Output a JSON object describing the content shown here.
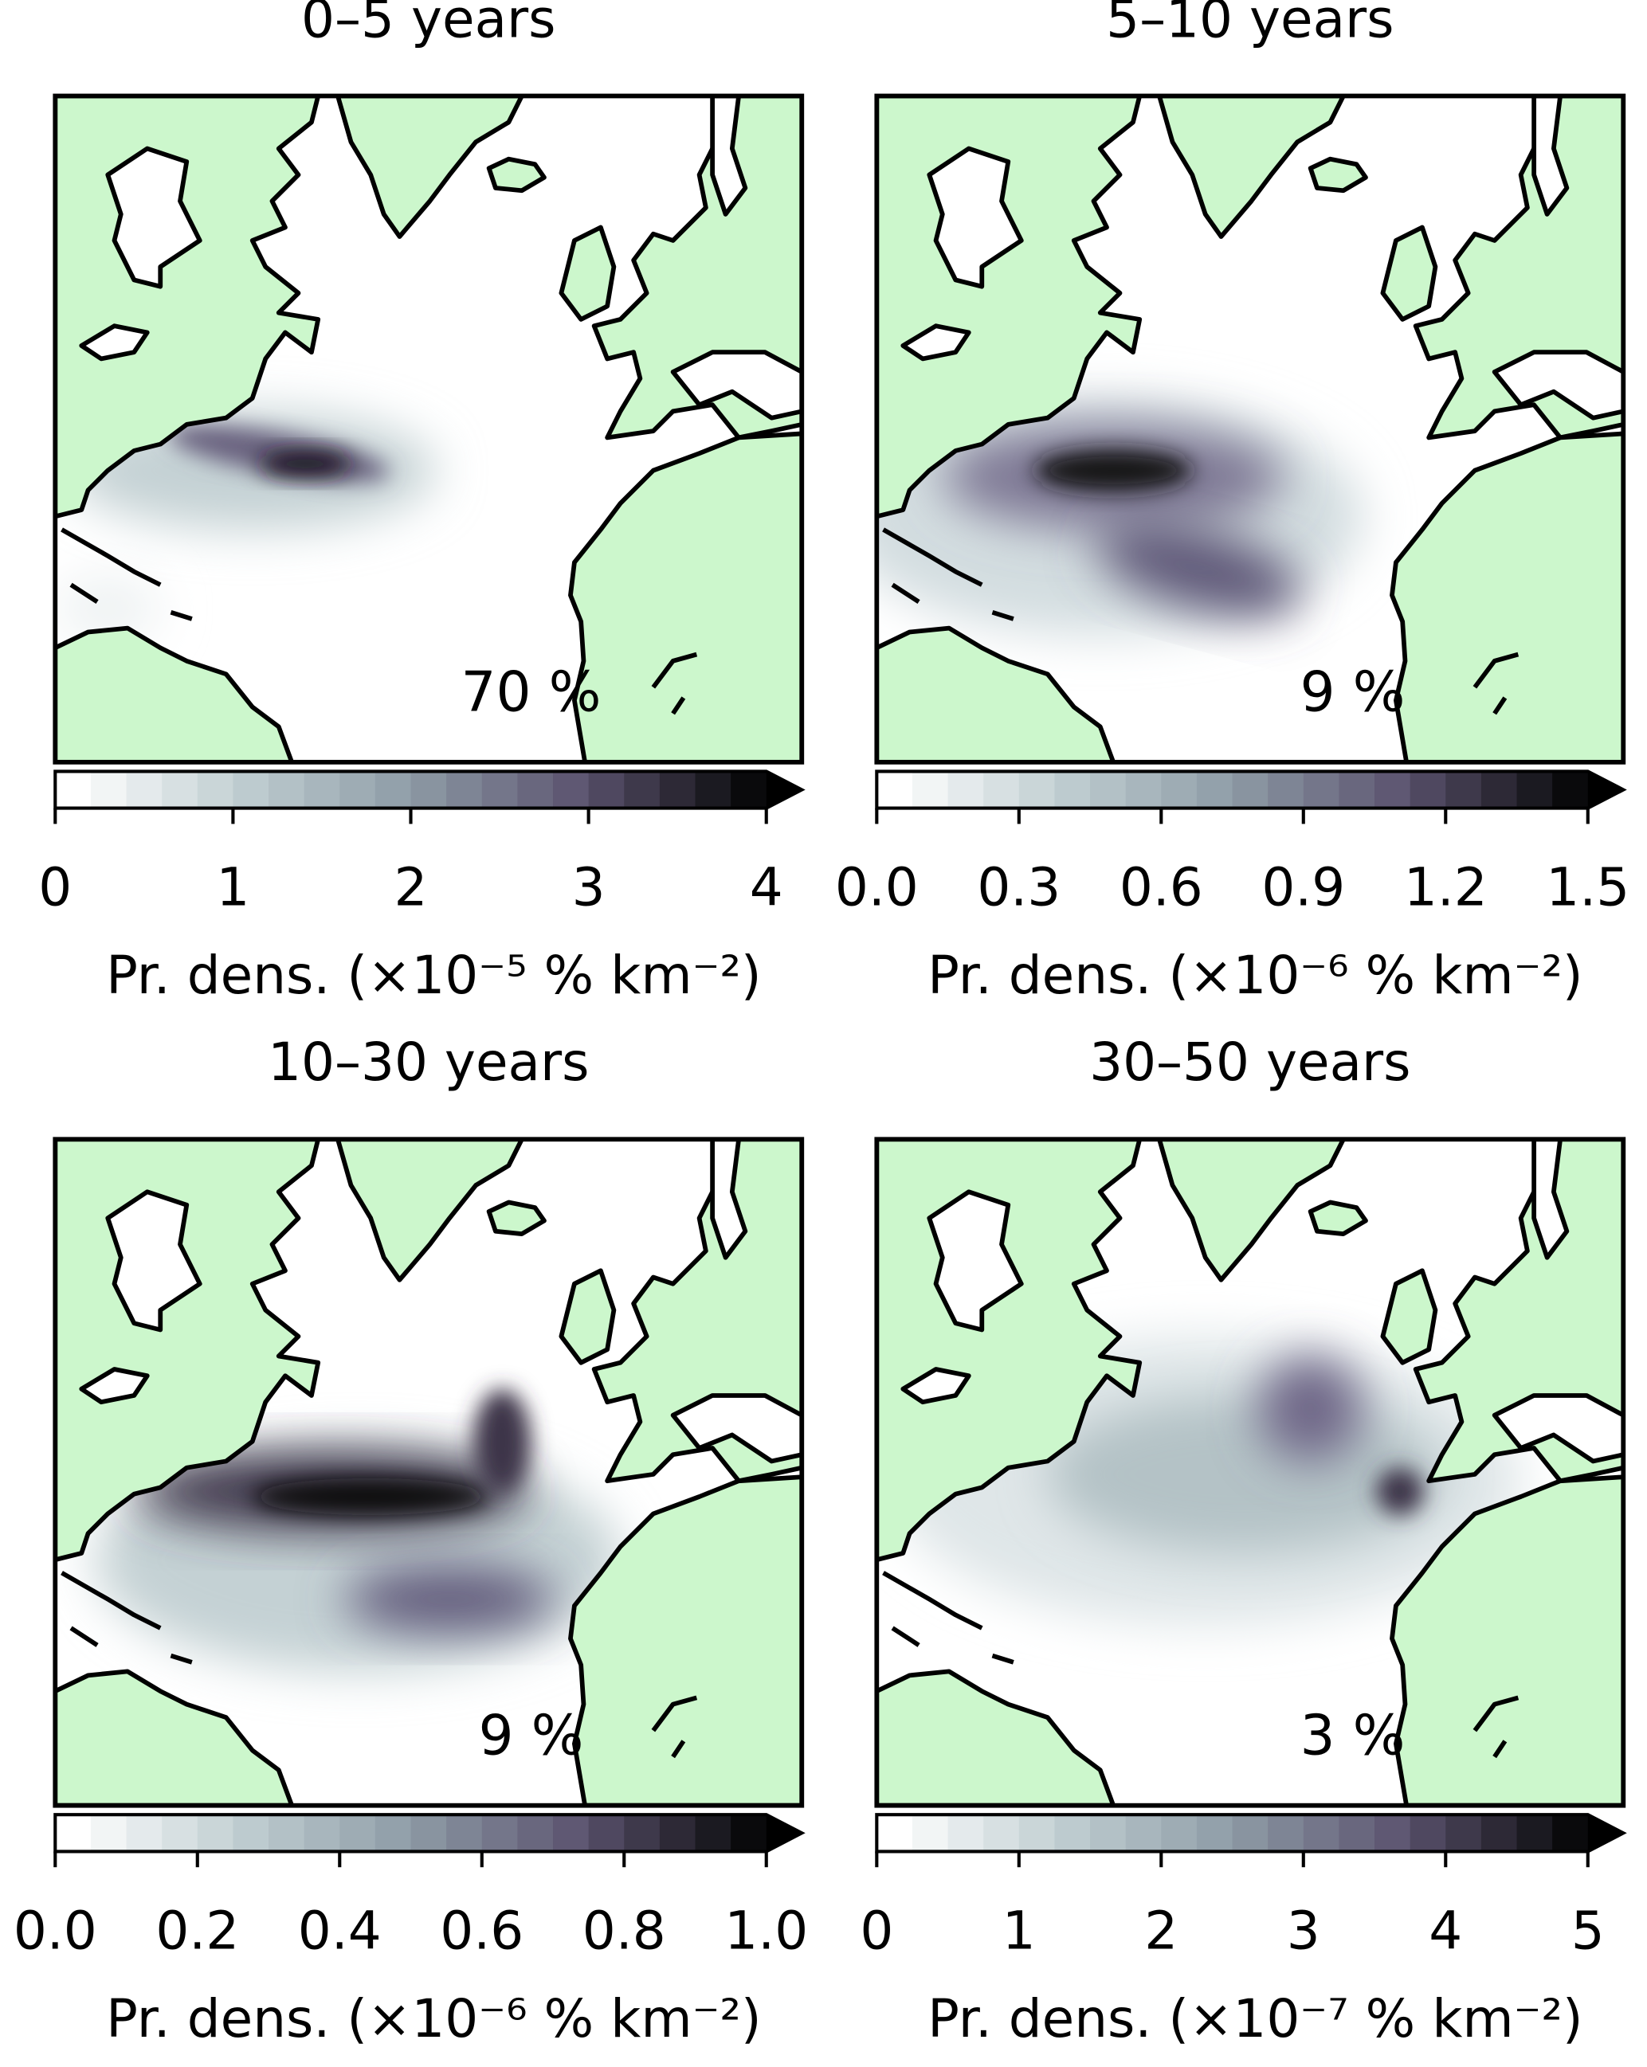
{
  "panels": [
    {
      "title": "0–5 years",
      "fraction": "70 %",
      "clim": [
        0,
        4
      ],
      "ticks": [
        0,
        1,
        2,
        3,
        4
      ],
      "colorbar_label": "Pr. dens. (×10⁻⁵ % km⁻²)"
    },
    {
      "title": "5–10 years",
      "fraction": "9 %",
      "clim": [
        0,
        1.5
      ],
      "ticks": [
        {
          "value": 0,
          "label": "0.0"
        },
        0.3,
        0.6,
        0.9,
        1.2,
        1.5
      ],
      "colorbar_label": "Pr. dens. (×10⁻⁶ % km⁻²)"
    },
    {
      "title": "10–30 years",
      "fraction": "9 %",
      "clim": [
        0,
        1
      ],
      "ticks": [
        {
          "value": 0,
          "label": "0.0"
        },
        0.2,
        0.4,
        0.6,
        0.8,
        {
          "value": 1,
          "label": "1.0"
        }
      ],
      "colorbar_label": "Pr. dens. (×10⁻⁶ % km⁻²)"
    },
    {
      "title": "30–50 years",
      "fraction": "3 %",
      "clim": [
        0,
        5
      ],
      "ticks": [
        0,
        1,
        2,
        3,
        4,
        5
      ],
      "colorbar_label": "Pr. dens. (×10⁻⁷ % km⁻²)"
    }
  ]
}
